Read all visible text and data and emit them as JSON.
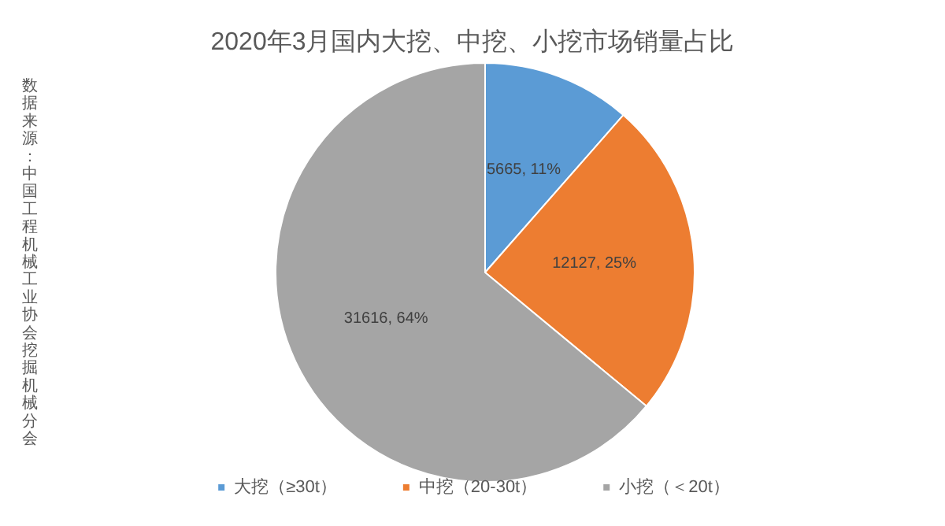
{
  "chart_data": {
    "type": "pie",
    "title": "2020年3月国内大挖、中挖、小挖市场销量占比",
    "categories": [
      "大挖（≥30t）",
      "中挖（20-30t）",
      "小挖（＜20t）"
    ],
    "values": [
      5665,
      12127,
      31616
    ],
    "colors": [
      "#5b9bd5",
      "#ed7d31",
      "#a5a5a5"
    ],
    "value_labels": [
      "5665, 11%",
      "12127, 25%",
      "31616, 64%"
    ],
    "legend": "bottom",
    "annotations": [
      "数据来源：中国工程机械工业协会挖掘机械分会"
    ]
  }
}
